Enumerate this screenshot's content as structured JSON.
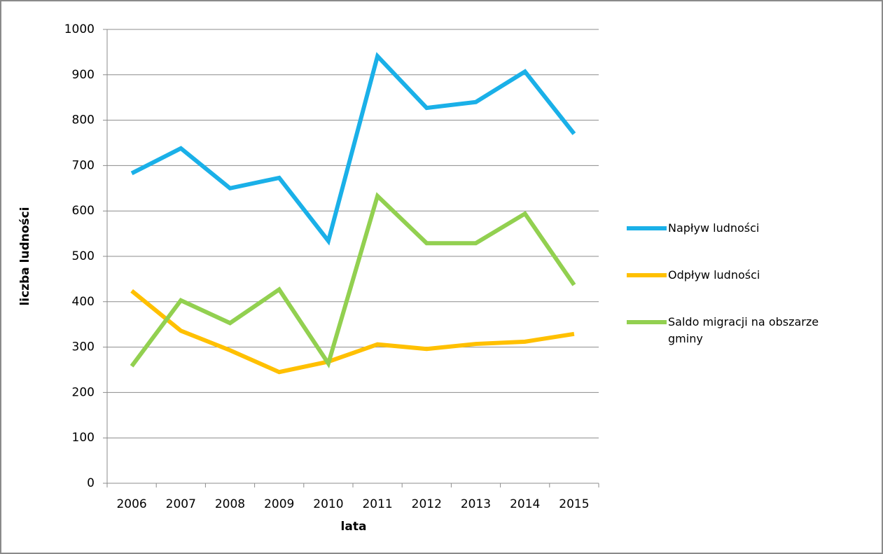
{
  "chart_data": {
    "type": "line",
    "xlabel": "lata",
    "ylabel": "liczba ludności",
    "categories": [
      "2006",
      "2007",
      "2008",
      "2009",
      "2010",
      "2011",
      "2012",
      "2013",
      "2014",
      "2015"
    ],
    "series": [
      {
        "name": "Napływ ludności",
        "color": "#1ab0e8",
        "values": [
          683,
          738,
          650,
          673,
          534,
          941,
          827,
          840,
          907,
          770
        ]
      },
      {
        "name": "Odpływ ludności",
        "color": "#ffc000",
        "values": [
          424,
          336,
          293,
          245,
          268,
          306,
          296,
          307,
          312,
          329
        ]
      },
      {
        "name": "Saldo migracji na obszarze gminy",
        "color": "#92d050",
        "values": [
          258,
          403,
          353,
          427,
          264,
          633,
          529,
          529,
          594,
          437
        ]
      }
    ],
    "ylim": [
      0,
      1000
    ],
    "yticks": [
      0,
      100,
      200,
      300,
      400,
      500,
      600,
      700,
      800,
      900,
      1000
    ],
    "grid": true,
    "legend": "right"
  }
}
